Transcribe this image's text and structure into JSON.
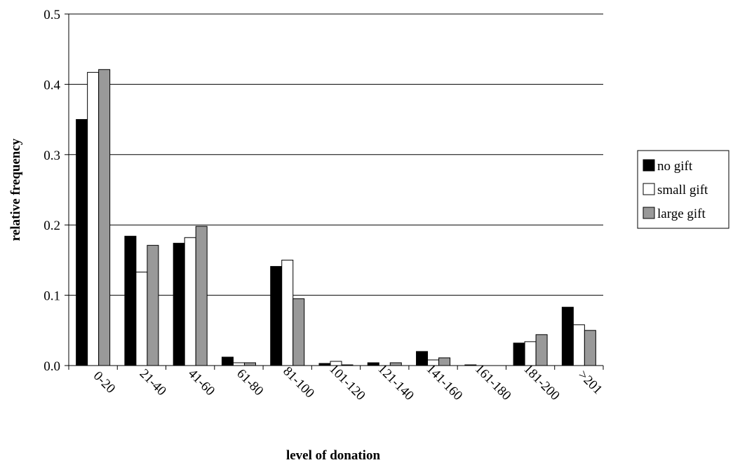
{
  "chart_data": {
    "type": "bar",
    "title": "",
    "xlabel": "level of donation",
    "ylabel": "relative frequency",
    "ylim": [
      0,
      0.5
    ],
    "yticks": [
      "0.0",
      "0.1",
      "0.2",
      "0.3",
      "0.4",
      "0.5"
    ],
    "grid": "horizontal",
    "legend_position": "right",
    "categories": [
      "0-20",
      "21-40",
      "41-60",
      "61-80",
      "81-100",
      "101-120",
      "121-140",
      "141-160",
      "161-180",
      "181-200",
      ">201"
    ],
    "series": [
      {
        "name": "no gift",
        "color": "#000000",
        "values": [
          0.35,
          0.184,
          0.174,
          0.012,
          0.141,
          0.003,
          0.004,
          0.02,
          0.001,
          0.032,
          0.083
        ]
      },
      {
        "name": "small gift",
        "color": "#ffffff",
        "values": [
          0.417,
          0.133,
          0.182,
          0.004,
          0.15,
          0.006,
          0.0,
          0.008,
          0.0,
          0.034,
          0.058
        ]
      },
      {
        "name": "large gift",
        "color": "#999999",
        "values": [
          0.421,
          0.171,
          0.198,
          0.004,
          0.095,
          0.001,
          0.004,
          0.011,
          0.0,
          0.044,
          0.05
        ]
      }
    ]
  }
}
